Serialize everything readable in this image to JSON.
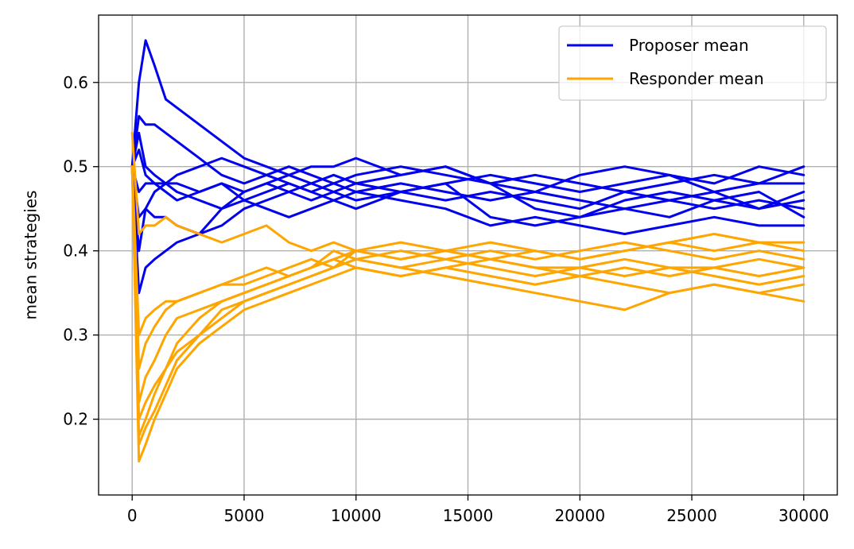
{
  "chart_data": {
    "type": "line",
    "title": "",
    "xlabel": "",
    "ylabel": "mean strategies",
    "xlim": [
      -1500,
      31500
    ],
    "ylim": [
      0.11,
      0.68
    ],
    "xticks": [
      0,
      5000,
      10000,
      15000,
      20000,
      25000,
      30000
    ],
    "xtick_labels": [
      "0",
      "5000",
      "10000",
      "15000",
      "20000",
      "25000",
      "30000"
    ],
    "yticks": [
      0.2,
      0.3,
      0.4,
      0.5,
      0.6
    ],
    "ytick_labels": [
      "0.2",
      "0.3",
      "0.4",
      "0.5",
      "0.6"
    ],
    "grid": true,
    "legend_position": "top-right",
    "legend": [
      {
        "label": "Proposer mean",
        "color": "#0000ee"
      },
      {
        "label": "Responder mean",
        "color": "#ffa500"
      }
    ],
    "colors": {
      "proposer": "#0000ee",
      "responder": "#ffa500",
      "grid": "#b0b0b0"
    },
    "x": [
      0,
      300,
      600,
      1000,
      1500,
      2000,
      3000,
      4000,
      5000,
      6000,
      7000,
      8000,
      9000,
      10000,
      12000,
      14000,
      16000,
      18000,
      20000,
      22000,
      24000,
      26000,
      28000,
      30000
    ],
    "series": [
      {
        "group": "proposer",
        "values": [
          0.5,
          0.6,
          0.65,
          0.62,
          0.58,
          0.57,
          0.55,
          0.53,
          0.51,
          0.5,
          0.49,
          0.5,
          0.5,
          0.51,
          0.49,
          0.5,
          0.48,
          0.49,
          0.48,
          0.47,
          0.48,
          0.49,
          0.48,
          0.5
        ]
      },
      {
        "group": "proposer",
        "values": [
          0.5,
          0.56,
          0.55,
          0.55,
          0.54,
          0.53,
          0.51,
          0.49,
          0.48,
          0.49,
          0.48,
          0.47,
          0.48,
          0.47,
          0.48,
          0.47,
          0.46,
          0.47,
          0.46,
          0.45,
          0.46,
          0.47,
          0.45,
          0.47
        ]
      },
      {
        "group": "proposer",
        "values": [
          0.5,
          0.4,
          0.45,
          0.47,
          0.48,
          0.49,
          0.5,
          0.51,
          0.5,
          0.49,
          0.5,
          0.49,
          0.48,
          0.49,
          0.5,
          0.49,
          0.48,
          0.45,
          0.44,
          0.46,
          0.47,
          0.46,
          0.45,
          0.46
        ]
      },
      {
        "group": "proposer",
        "values": [
          0.5,
          0.35,
          0.38,
          0.39,
          0.4,
          0.41,
          0.42,
          0.45,
          0.47,
          0.48,
          0.47,
          0.46,
          0.47,
          0.46,
          0.47,
          0.48,
          0.44,
          0.43,
          0.44,
          0.45,
          0.44,
          0.46,
          0.47,
          0.44
        ]
      },
      {
        "group": "proposer",
        "values": [
          0.5,
          0.47,
          0.48,
          0.48,
          0.47,
          0.46,
          0.47,
          0.48,
          0.46,
          0.47,
          0.48,
          0.47,
          0.46,
          0.45,
          0.47,
          0.46,
          0.47,
          0.46,
          0.45,
          0.47,
          0.46,
          0.45,
          0.46,
          0.45
        ]
      },
      {
        "group": "proposer",
        "values": [
          0.5,
          0.44,
          0.45,
          0.44,
          0.44,
          0.43,
          0.42,
          0.43,
          0.45,
          0.46,
          0.47,
          0.48,
          0.49,
          0.48,
          0.49,
          0.5,
          0.48,
          0.47,
          0.49,
          0.5,
          0.49,
          0.48,
          0.5,
          0.49
        ]
      },
      {
        "group": "proposer",
        "values": [
          0.5,
          0.52,
          0.49,
          0.48,
          0.48,
          0.47,
          0.46,
          0.45,
          0.46,
          0.45,
          0.44,
          0.45,
          0.46,
          0.47,
          0.46,
          0.45,
          0.43,
          0.44,
          0.43,
          0.42,
          0.43,
          0.44,
          0.43,
          0.43
        ]
      },
      {
        "group": "proposer",
        "values": [
          0.5,
          0.54,
          0.5,
          0.49,
          0.48,
          0.48,
          0.47,
          0.48,
          0.47,
          0.48,
          0.49,
          0.48,
          0.47,
          0.48,
          0.47,
          0.48,
          0.49,
          0.48,
          0.47,
          0.48,
          0.49,
          0.47,
          0.48,
          0.48
        ]
      },
      {
        "group": "responder",
        "values": [
          0.5,
          0.15,
          0.17,
          0.2,
          0.23,
          0.26,
          0.29,
          0.31,
          0.33,
          0.34,
          0.35,
          0.36,
          0.37,
          0.38,
          0.37,
          0.38,
          0.37,
          0.36,
          0.37,
          0.36,
          0.35,
          0.36,
          0.35,
          0.34
        ]
      },
      {
        "group": "responder",
        "values": [
          0.5,
          0.18,
          0.2,
          0.23,
          0.26,
          0.29,
          0.32,
          0.34,
          0.35,
          0.36,
          0.37,
          0.38,
          0.39,
          0.4,
          0.39,
          0.4,
          0.39,
          0.38,
          0.38,
          0.37,
          0.38,
          0.37,
          0.36,
          0.37
        ]
      },
      {
        "group": "responder",
        "values": [
          0.54,
          0.42,
          0.43,
          0.43,
          0.44,
          0.43,
          0.42,
          0.41,
          0.42,
          0.43,
          0.41,
          0.4,
          0.41,
          0.4,
          0.39,
          0.4,
          0.39,
          0.4,
          0.39,
          0.4,
          0.41,
          0.4,
          0.41,
          0.41
        ]
      },
      {
        "group": "responder",
        "values": [
          0.5,
          0.26,
          0.29,
          0.31,
          0.33,
          0.34,
          0.35,
          0.36,
          0.36,
          0.37,
          0.38,
          0.39,
          0.38,
          0.39,
          0.4,
          0.39,
          0.4,
          0.39,
          0.4,
          0.41,
          0.4,
          0.39,
          0.4,
          0.39
        ]
      },
      {
        "group": "responder",
        "values": [
          0.5,
          0.22,
          0.25,
          0.27,
          0.3,
          0.32,
          0.33,
          0.34,
          0.35,
          0.36,
          0.37,
          0.38,
          0.4,
          0.39,
          0.38,
          0.37,
          0.36,
          0.35,
          0.34,
          0.33,
          0.35,
          0.36,
          0.35,
          0.36
        ]
      },
      {
        "group": "responder",
        "values": [
          0.5,
          0.2,
          0.22,
          0.24,
          0.26,
          0.28,
          0.3,
          0.33,
          0.34,
          0.35,
          0.36,
          0.37,
          0.38,
          0.39,
          0.38,
          0.39,
          0.38,
          0.37,
          0.38,
          0.39,
          0.38,
          0.38,
          0.37,
          0.38
        ]
      },
      {
        "group": "responder",
        "values": [
          0.5,
          0.17,
          0.19,
          0.21,
          0.24,
          0.27,
          0.3,
          0.32,
          0.34,
          0.35,
          0.36,
          0.37,
          0.38,
          0.4,
          0.41,
          0.4,
          0.41,
          0.4,
          0.39,
          0.4,
          0.41,
          0.42,
          0.41,
          0.4
        ]
      },
      {
        "group": "responder",
        "values": [
          0.5,
          0.3,
          0.32,
          0.33,
          0.34,
          0.34,
          0.35,
          0.36,
          0.37,
          0.38,
          0.37,
          0.38,
          0.39,
          0.38,
          0.37,
          0.38,
          0.39,
          0.38,
          0.37,
          0.38,
          0.37,
          0.38,
          0.39,
          0.38
        ]
      }
    ]
  }
}
